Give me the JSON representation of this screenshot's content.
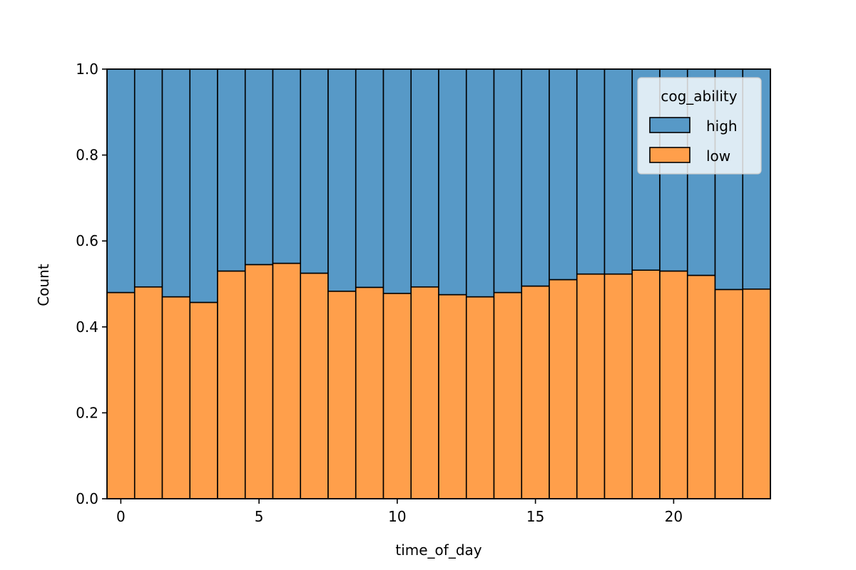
{
  "chart_data": {
    "type": "bar",
    "stacked": true,
    "normalized": true,
    "xlabel": "time_of_day",
    "ylabel": "Count",
    "xlim": [
      -0.5,
      23.5
    ],
    "ylim": [
      0,
      1.0
    ],
    "x_ticks": [
      0,
      5,
      10,
      15,
      20
    ],
    "y_ticks": [
      0.0,
      0.2,
      0.4,
      0.6,
      0.8,
      1.0
    ],
    "y_tick_labels": [
      "0.0",
      "0.2",
      "0.4",
      "0.6",
      "0.8",
      "1.0"
    ],
    "grid": false,
    "legend": {
      "title": "cog_ability",
      "placement": "top-right"
    },
    "categories": [
      0,
      1,
      2,
      3,
      4,
      5,
      6,
      7,
      8,
      9,
      10,
      11,
      12,
      13,
      14,
      15,
      16,
      17,
      18,
      19,
      20,
      21,
      22,
      23
    ],
    "series": [
      {
        "name": "high",
        "color": "#5799c7",
        "values": [
          0.52,
          0.507,
          0.53,
          0.543,
          0.47,
          0.455,
          0.452,
          0.475,
          0.517,
          0.508,
          0.522,
          0.507,
          0.525,
          0.53,
          0.52,
          0.505,
          0.49,
          0.477,
          0.477,
          0.468,
          0.47,
          0.48,
          0.513,
          0.512
        ]
      },
      {
        "name": "low",
        "color": "#ff9f4b",
        "values": [
          0.48,
          0.493,
          0.47,
          0.457,
          0.53,
          0.545,
          0.548,
          0.525,
          0.483,
          0.492,
          0.478,
          0.493,
          0.475,
          0.47,
          0.48,
          0.495,
          0.51,
          0.523,
          0.523,
          0.532,
          0.53,
          0.52,
          0.487,
          0.488
        ]
      }
    ]
  }
}
